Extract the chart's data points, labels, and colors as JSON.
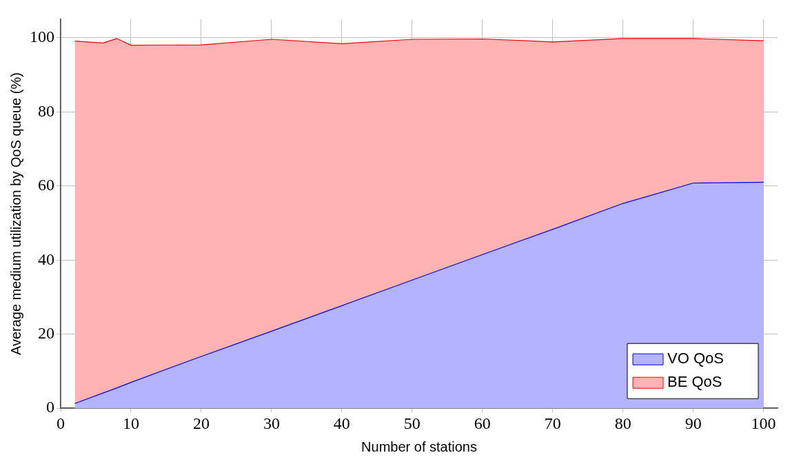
{
  "chart_data": {
    "type": "area",
    "stacked": true,
    "xlabel": "Number of stations",
    "ylabel": "Average medium utilization by QoS queue (%)",
    "x": [
      2,
      6,
      8,
      10,
      20,
      30,
      40,
      50,
      60,
      70,
      80,
      90,
      100
    ],
    "series": [
      {
        "name": "VO QoS",
        "color": "#0000ff",
        "values": [
          1.3,
          4.1,
          5.5,
          7.0,
          14.0,
          20.8,
          27.7,
          34.6,
          41.5,
          48.3,
          55.3,
          60.8,
          61.0
        ]
      },
      {
        "name": "BE QoS",
        "color": "#ff0000",
        "values": [
          97.8,
          94.5,
          94.3,
          91.0,
          84.1,
          78.8,
          70.7,
          65.0,
          58.2,
          50.6,
          44.5,
          39.0,
          38.2
        ]
      }
    ],
    "xlim": [
      0,
      102
    ],
    "xticks": [
      0,
      10,
      20,
      30,
      40,
      50,
      60,
      70,
      80,
      90,
      100
    ],
    "ylim": [
      0,
      105
    ],
    "yticks": [
      0,
      20,
      40,
      60,
      80,
      100
    ],
    "grid": true,
    "legend": "bottom right"
  }
}
